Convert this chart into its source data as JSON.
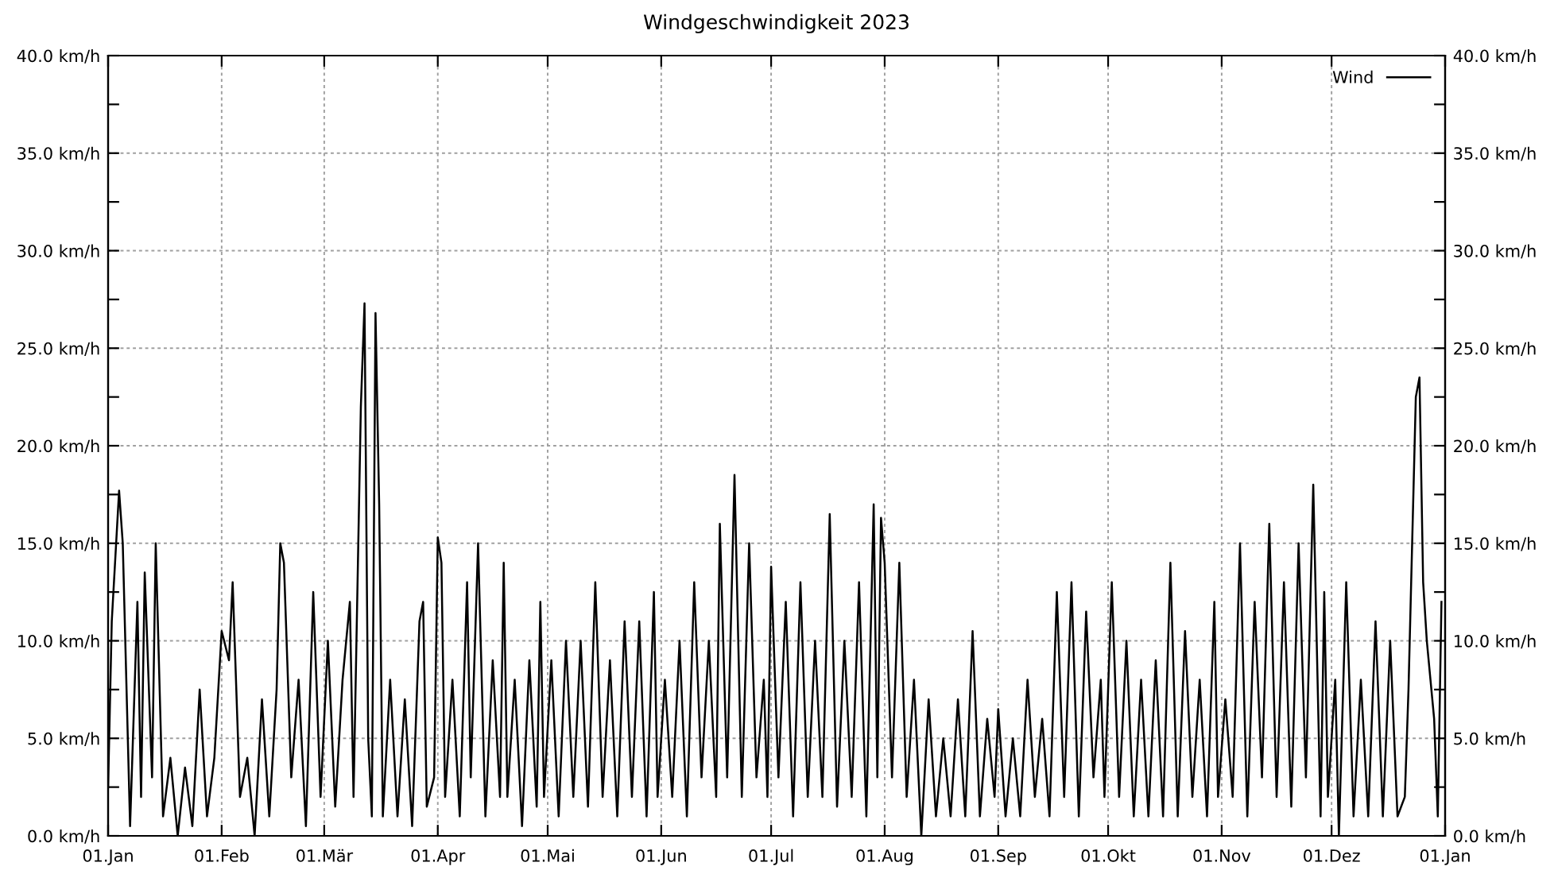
{
  "chart_data": {
    "type": "line",
    "title": "Windgeschwindigkeit 2023",
    "series": [
      {
        "name": "Wind",
        "color": "#000000",
        "x": [
          "2023-01-01",
          "2023-01-02",
          "2023-01-04",
          "2023-01-05",
          "2023-01-07",
          "2023-01-09",
          "2023-01-10",
          "2023-01-11",
          "2023-01-13",
          "2023-01-14",
          "2023-01-16",
          "2023-01-18",
          "2023-01-20",
          "2023-01-22",
          "2023-01-24",
          "2023-01-26",
          "2023-01-28",
          "2023-01-30",
          "2023-02-01",
          "2023-02-03",
          "2023-02-04",
          "2023-02-06",
          "2023-02-08",
          "2023-02-10",
          "2023-02-12",
          "2023-02-14",
          "2023-02-16",
          "2023-02-17",
          "2023-02-18",
          "2023-02-20",
          "2023-02-22",
          "2023-02-24",
          "2023-02-26",
          "2023-02-28",
          "2023-03-02",
          "2023-03-04",
          "2023-03-06",
          "2023-03-08",
          "2023-03-09",
          "2023-03-11",
          "2023-03-12",
          "2023-03-13",
          "2023-03-14",
          "2023-03-15",
          "2023-03-16",
          "2023-03-17",
          "2023-03-19",
          "2023-03-21",
          "2023-03-23",
          "2023-03-25",
          "2023-03-27",
          "2023-03-28",
          "2023-03-29",
          "2023-03-31",
          "2023-04-01",
          "2023-04-02",
          "2023-04-03",
          "2023-04-05",
          "2023-04-07",
          "2023-04-09",
          "2023-04-10",
          "2023-04-12",
          "2023-04-14",
          "2023-04-16",
          "2023-04-18",
          "2023-04-19",
          "2023-04-20",
          "2023-04-22",
          "2023-04-24",
          "2023-04-26",
          "2023-04-28",
          "2023-04-29",
          "2023-04-30",
          "2023-05-02",
          "2023-05-04",
          "2023-05-06",
          "2023-05-08",
          "2023-05-10",
          "2023-05-12",
          "2023-05-14",
          "2023-05-16",
          "2023-05-18",
          "2023-05-20",
          "2023-05-22",
          "2023-05-24",
          "2023-05-26",
          "2023-05-28",
          "2023-05-30",
          "2023-05-31",
          "2023-06-02",
          "2023-06-04",
          "2023-06-06",
          "2023-06-08",
          "2023-06-10",
          "2023-06-12",
          "2023-06-14",
          "2023-06-16",
          "2023-06-17",
          "2023-06-19",
          "2023-06-21",
          "2023-06-23",
          "2023-06-25",
          "2023-06-27",
          "2023-06-29",
          "2023-06-30",
          "2023-07-01",
          "2023-07-03",
          "2023-07-05",
          "2023-07-07",
          "2023-07-09",
          "2023-07-11",
          "2023-07-13",
          "2023-07-15",
          "2023-07-17",
          "2023-07-19",
          "2023-07-21",
          "2023-07-23",
          "2023-07-25",
          "2023-07-27",
          "2023-07-29",
          "2023-07-30",
          "2023-07-31",
          "2023-08-01",
          "2023-08-03",
          "2023-08-05",
          "2023-08-07",
          "2023-08-09",
          "2023-08-11",
          "2023-08-13",
          "2023-08-15",
          "2023-08-17",
          "2023-08-19",
          "2023-08-21",
          "2023-08-23",
          "2023-08-25",
          "2023-08-27",
          "2023-08-29",
          "2023-08-31",
          "2023-09-01",
          "2023-09-03",
          "2023-09-05",
          "2023-09-07",
          "2023-09-09",
          "2023-09-11",
          "2023-09-13",
          "2023-09-15",
          "2023-09-17",
          "2023-09-19",
          "2023-09-21",
          "2023-09-23",
          "2023-09-25",
          "2023-09-27",
          "2023-09-29",
          "2023-09-30",
          "2023-10-02",
          "2023-10-04",
          "2023-10-06",
          "2023-10-08",
          "2023-10-10",
          "2023-10-12",
          "2023-10-14",
          "2023-10-16",
          "2023-10-18",
          "2023-10-20",
          "2023-10-22",
          "2023-10-24",
          "2023-10-26",
          "2023-10-28",
          "2023-10-30",
          "2023-10-31",
          "2023-11-02",
          "2023-11-04",
          "2023-11-06",
          "2023-11-08",
          "2023-11-10",
          "2023-11-12",
          "2023-11-14",
          "2023-11-16",
          "2023-11-18",
          "2023-11-20",
          "2023-11-22",
          "2023-11-24",
          "2023-11-26",
          "2023-11-28",
          "2023-11-29",
          "2023-11-30",
          "2023-12-02",
          "2023-12-03",
          "2023-12-05",
          "2023-12-07",
          "2023-12-09",
          "2023-12-11",
          "2023-12-13",
          "2023-12-15",
          "2023-12-17",
          "2023-12-19",
          "2023-12-21",
          "2023-12-22",
          "2023-12-23",
          "2023-12-24",
          "2023-12-25",
          "2023-12-26",
          "2023-12-27",
          "2023-12-28",
          "2023-12-29",
          "2023-12-30",
          "2023-12-31"
        ],
        "values": [
          2.5,
          11,
          17.7,
          15,
          0.5,
          12,
          2,
          13.5,
          3,
          15,
          1,
          4,
          0,
          3.5,
          0.5,
          7.5,
          1,
          4,
          10.5,
          9,
          13,
          2,
          4,
          0,
          7,
          1,
          7.5,
          15,
          14,
          3,
          8,
          0.5,
          12.5,
          2,
          10,
          1.5,
          8,
          12,
          2,
          22,
          27.3,
          5,
          1,
          26.8,
          17,
          1,
          8,
          1,
          7,
          0.5,
          11,
          12,
          1.5,
          3,
          15.3,
          14,
          2,
          8,
          1,
          13,
          3,
          15,
          1,
          9,
          2,
          14,
          2,
          8,
          0.5,
          9,
          1.5,
          12,
          2,
          9,
          1,
          10,
          2,
          10,
          1.5,
          13,
          2,
          9,
          1,
          11,
          2,
          11,
          1,
          12.5,
          2,
          8,
          2,
          10,
          1,
          13,
          3,
          10,
          2,
          16,
          3,
          18.5,
          2,
          15,
          3,
          8,
          2,
          13.8,
          3,
          12,
          1,
          13,
          2,
          10,
          2,
          16.5,
          1.5,
          10,
          2,
          13,
          1,
          17,
          3,
          16.3,
          14,
          3,
          14,
          2,
          8,
          0,
          7,
          1,
          5,
          1,
          7,
          1,
          10.5,
          1,
          6,
          2,
          6.5,
          1,
          5,
          1,
          8,
          2,
          6,
          1,
          12.5,
          2,
          13,
          1,
          11.5,
          3,
          8,
          2,
          13,
          2,
          10,
          1,
          8,
          1,
          9,
          1,
          14,
          1,
          10.5,
          2,
          8,
          1,
          12,
          2,
          7,
          2,
          15,
          1,
          12,
          3,
          16,
          2,
          13,
          1.5,
          15,
          3,
          18,
          1,
          12.5,
          2,
          8,
          0,
          13,
          1,
          8,
          1,
          11,
          1,
          10,
          1,
          2,
          7.5,
          15,
          22.5,
          23.5,
          13,
          10,
          8,
          6,
          1,
          12
        ]
      }
    ],
    "xlim": [
      "2023-01-01",
      "2024-01-01"
    ],
    "xticks": [
      {
        "value": "2023-01-01",
        "label": "01.Jan"
      },
      {
        "value": "2023-02-01",
        "label": "01.Feb"
      },
      {
        "value": "2023-03-01",
        "label": "01.Mär"
      },
      {
        "value": "2023-04-01",
        "label": "01.Apr"
      },
      {
        "value": "2023-05-01",
        "label": "01.Mai"
      },
      {
        "value": "2023-06-01",
        "label": "01.Jun"
      },
      {
        "value": "2023-07-01",
        "label": "01.Jul"
      },
      {
        "value": "2023-08-01",
        "label": "01.Aug"
      },
      {
        "value": "2023-09-01",
        "label": "01.Sep"
      },
      {
        "value": "2023-10-01",
        "label": "01.Okt"
      },
      {
        "value": "2023-11-01",
        "label": "01.Nov"
      },
      {
        "value": "2023-12-01",
        "label": "01.Dez"
      },
      {
        "value": "2024-01-01",
        "label": "01.Jan"
      }
    ],
    "ylim": [
      0,
      40
    ],
    "yticks": [
      {
        "value": 0,
        "label": "0.0 km/h"
      },
      {
        "value": 2.5,
        "label": null
      },
      {
        "value": 5,
        "label": "5.0 km/h"
      },
      {
        "value": 7.5,
        "label": null
      },
      {
        "value": 10,
        "label": "10.0 km/h"
      },
      {
        "value": 12.5,
        "label": null
      },
      {
        "value": 15,
        "label": "15.0 km/h"
      },
      {
        "value": 17.5,
        "label": null
      },
      {
        "value": 20,
        "label": "20.0 km/h"
      },
      {
        "value": 22.5,
        "label": null
      },
      {
        "value": 25,
        "label": "25.0 km/h"
      },
      {
        "value": 27.5,
        "label": null
      },
      {
        "value": 30,
        "label": "30.0 km/h"
      },
      {
        "value": 32.5,
        "label": null
      },
      {
        "value": 35,
        "label": "35.0 km/h"
      },
      {
        "value": 37.5,
        "label": null
      },
      {
        "value": 40,
        "label": "40.0 km/h"
      }
    ],
    "y2lim": [
      0,
      40
    ],
    "y2ticks": [
      {
        "value": 0,
        "label": "0.0 km/h"
      },
      {
        "value": 2.5,
        "label": null
      },
      {
        "value": 5,
        "label": "5.0 km/h"
      },
      {
        "value": 7.5,
        "label": null
      },
      {
        "value": 10,
        "label": "10.0 km/h"
      },
      {
        "value": 12.5,
        "label": null
      },
      {
        "value": 15,
        "label": "15.0 km/h"
      },
      {
        "value": 17.5,
        "label": null
      },
      {
        "value": 20,
        "label": "20.0 km/h"
      },
      {
        "value": 22.5,
        "label": null
      },
      {
        "value": 25,
        "label": "25.0 km/h"
      },
      {
        "value": 27.5,
        "label": null
      },
      {
        "value": 30,
        "label": "30.0 km/h"
      },
      {
        "value": 32.5,
        "label": null
      },
      {
        "value": 35,
        "label": "35.0 km/h"
      },
      {
        "value": 37.5,
        "label": null
      },
      {
        "value": 40,
        "label": "40.0 km/h"
      }
    ],
    "grid": true,
    "legend": "top right",
    "marker": "none",
    "line_style": "solid"
  }
}
